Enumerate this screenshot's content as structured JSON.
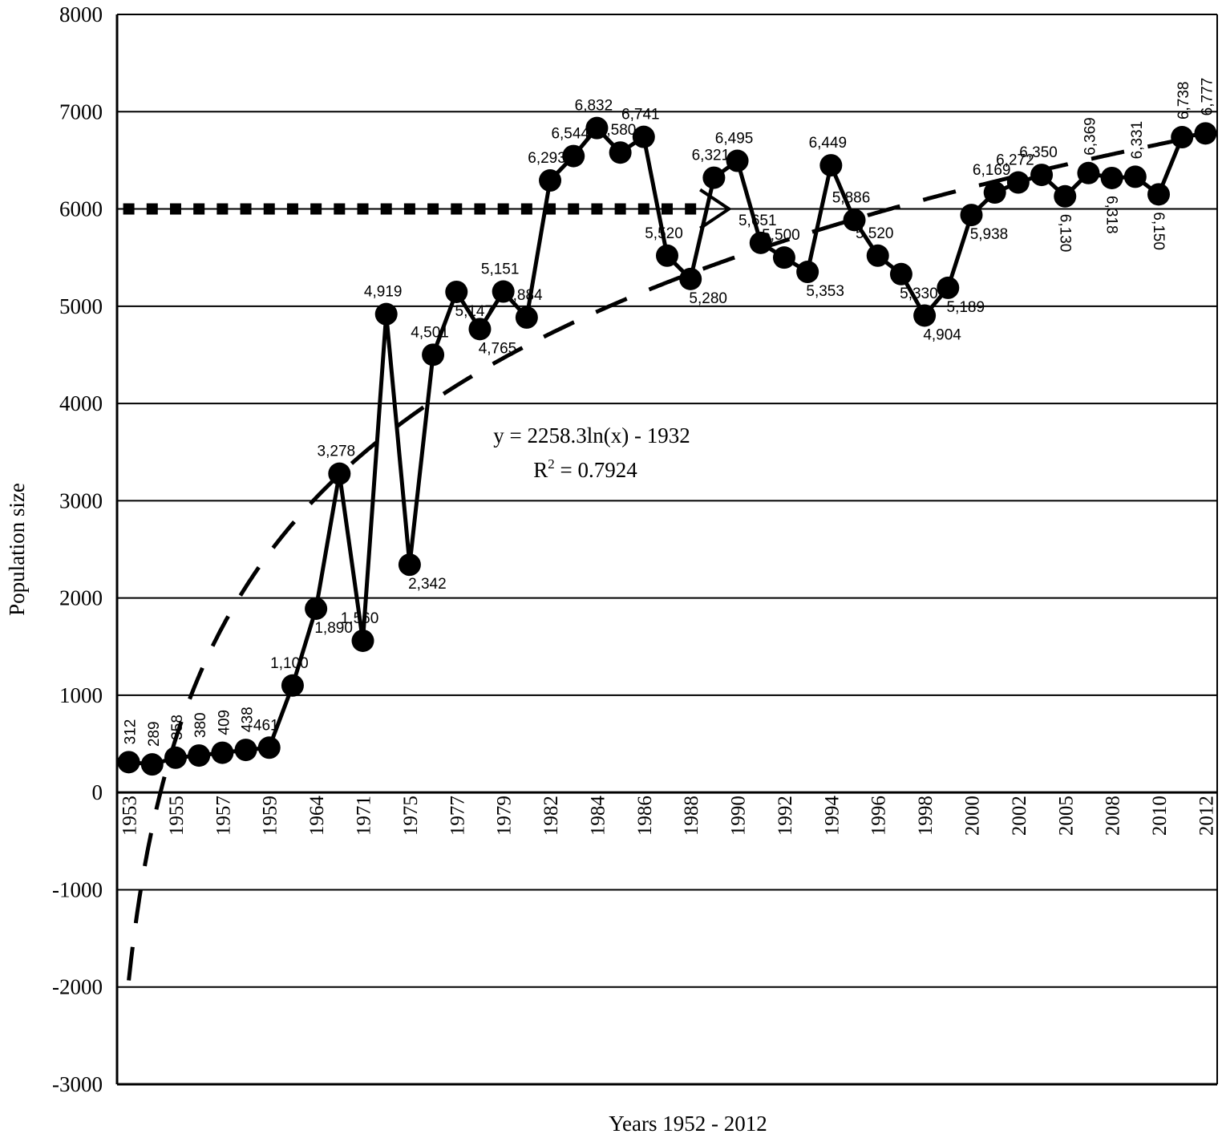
{
  "chart_data": {
    "type": "line",
    "xlabel": "Years 1952 - 2012",
    "ylabel": "Population size",
    "ylim": [
      -3000,
      8000
    ],
    "yticks": [
      "8000",
      "7000",
      "6000",
      "5000",
      "4000",
      "3000",
      "2000",
      "1000",
      "0",
      "-1000",
      "-2000",
      "-3000"
    ],
    "xtick_labels": [
      "1953",
      "1955",
      "1957",
      "1959",
      "1964",
      "1971",
      "1975",
      "1977",
      "1979",
      "1982",
      "1984",
      "1986",
      "1988",
      "1990",
      "1992",
      "1994",
      "1996",
      "1998",
      "2000",
      "2002",
      "2005",
      "2008",
      "2010",
      "2012"
    ],
    "grid": "horizontal",
    "series": [
      {
        "marker": "circle",
        "values": [
          312,
          289,
          358,
          380,
          409,
          438,
          461,
          1100,
          1890,
          3278,
          1560,
          4919,
          2342,
          4501,
          5147,
          4765,
          5151,
          4884,
          6293,
          6544,
          6832,
          6580,
          6741,
          5520,
          5280,
          6321,
          6495,
          5651,
          5500,
          5353,
          6449,
          5886,
          5520,
          5330,
          4904,
          5189,
          5938,
          6169,
          6272,
          6350,
          6130,
          6369,
          6318,
          6331,
          6150,
          6738,
          6777
        ],
        "labels": [
          "312",
          "289",
          "358",
          "380",
          "409",
          "438",
          "461",
          "1,100",
          "1,890",
          "3,278",
          "1,560",
          "4,919",
          "2,342",
          "4,501",
          "5,147",
          "4,765",
          "5,151",
          "4,884",
          "6,293",
          "6,544",
          "6,832",
          "6,580",
          "6,741",
          "5,520",
          "5,280",
          "6,321",
          "6,495",
          "5,651",
          "5,500",
          "5,353",
          "6,449",
          "5,886",
          "5,520",
          "5,330",
          "4,904",
          "5,189",
          "5,938",
          "6,169",
          "6,272",
          "6,350",
          "6,130",
          "6,369",
          "6,318",
          "6,331",
          "6,150",
          "6,738",
          "6,777"
        ]
      }
    ],
    "reference_line": {
      "value": 6000,
      "style": "dotted-square"
    },
    "trendline": {
      "type": "logarithmic",
      "a": 2258.3,
      "b": -1932,
      "equation": "y = 2258.3ln(x) - 1932",
      "r2_label": "R",
      "r2_sup": "2",
      "r2_value": " = 0.7924"
    }
  }
}
